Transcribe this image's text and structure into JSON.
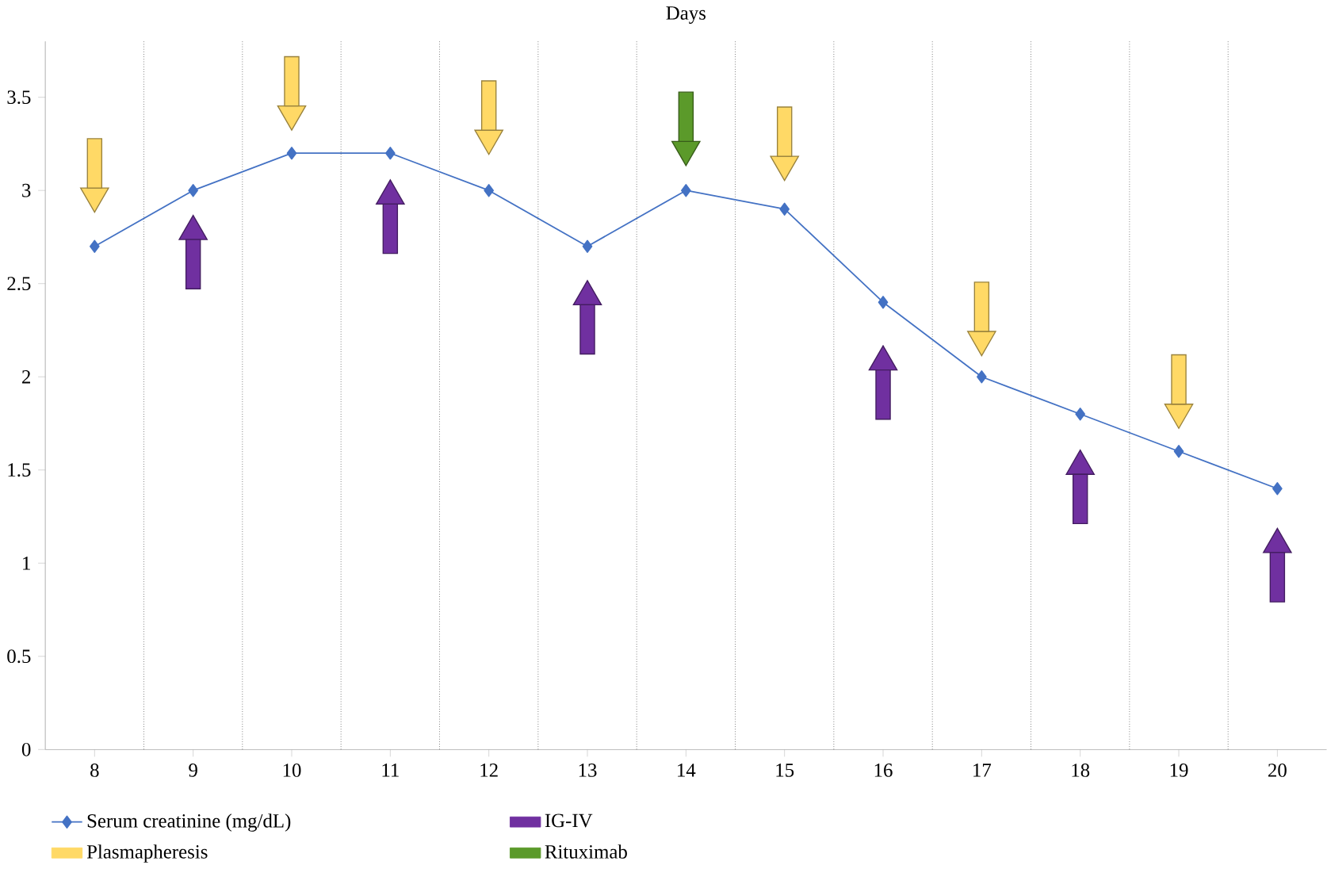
{
  "chart_data": {
    "type": "line",
    "title": "Days",
    "categories": [
      "8",
      "9",
      "10",
      "11",
      "12",
      "13",
      "14",
      "15",
      "16",
      "17",
      "18",
      "19",
      "20"
    ],
    "series": [
      {
        "name": "Serum creatinine (mg/dL)",
        "color": "#4472c4",
        "marker": "diamond",
        "values": [
          2.7,
          3.0,
          3.2,
          3.2,
          3.0,
          2.7,
          3.0,
          2.9,
          2.4,
          2.0,
          1.8,
          1.6,
          1.4
        ]
      },
      {
        "name": "IG-IV",
        "type": "scatter",
        "color": "#7030a0",
        "values": [
          null,
          2.78,
          null,
          2.97,
          null,
          2.43,
          null,
          null,
          2.08,
          null,
          1.52,
          null,
          1.1
        ]
      },
      {
        "name": "Plasmapheresis",
        "type": "scatter",
        "color": "#ffd966",
        "values": [
          2.97,
          null,
          3.41,
          null,
          3.28,
          null,
          null,
          3.14,
          null,
          2.2,
          null,
          1.81,
          null
        ]
      },
      {
        "name": "Rituximab",
        "type": "scatter",
        "color": "#5b9a2a",
        "values": [
          null,
          null,
          null,
          null,
          null,
          null,
          3.22,
          null,
          null,
          null,
          null,
          null,
          null
        ]
      }
    ],
    "ylim": [
      0,
      3.8
    ],
    "yticks": [
      0,
      0.5,
      1,
      1.5,
      2,
      2.5,
      3,
      3.5
    ],
    "grid": "x",
    "legend": "bottom"
  }
}
